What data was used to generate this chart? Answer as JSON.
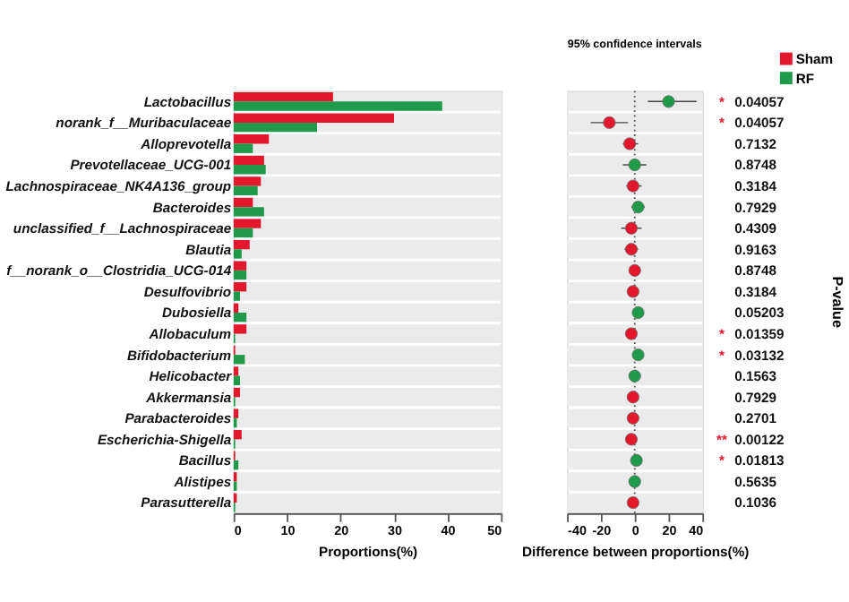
{
  "chart_data": [
    {
      "type": "bar",
      "orientation": "horizontal",
      "categories": [
        "Lactobacillus",
        "norank_f__Muribaculaceae",
        "Alloprevotella",
        "Prevotellaceae_UCG-001",
        "Lachnospiraceae_NK4A136_group",
        "Bacteroides",
        "unclassified_f__Lachnospiraceae",
        "Blautia",
        "f__norank_o__Clostridia_UCG-014",
        "Desulfovibrio",
        "Dubosiella",
        "Allobaculum",
        "Bifidobacterium",
        "Helicobacter",
        "Akkermansia",
        "Parabacteroides",
        "Escherichia-Shigella",
        "Bacillus",
        "Alistipes",
        "Parasutterella"
      ],
      "series": [
        {
          "name": "Sham",
          "color": "#e3182d",
          "values": [
            18.6,
            30,
            6.6,
            5.7,
            5.1,
            3.6,
            5.1,
            3,
            2.4,
            2.4,
            0.9,
            2.4,
            0.3,
            0.9,
            1.2,
            0.9,
            1.5,
            0.3,
            0.6,
            0.6
          ]
        },
        {
          "name": "RF",
          "color": "#1f9a4a",
          "values": [
            39,
            15.6,
            3.6,
            6,
            4.5,
            5.7,
            3.6,
            1.5,
            2.4,
            1.2,
            2.4,
            0.3,
            2.1,
            1.2,
            0.3,
            0.6,
            0.3,
            0.9,
            0.6,
            0.3
          ]
        }
      ],
      "xlim": [
        0,
        50
      ],
      "xticks": [
        0,
        10,
        20,
        30,
        40,
        50
      ],
      "xlabel": "Proportions(%)",
      "legend": "top right"
    },
    {
      "type": "scatter",
      "orientation": "horizontal",
      "title": "95% confidence intervals",
      "categories": [
        null,
        null,
        null,
        null,
        null,
        null,
        null,
        null,
        null,
        null,
        null,
        null,
        null,
        null,
        null,
        null,
        null,
        null,
        null,
        null
      ],
      "series": [
        {
          "colors": [
            "#1f9a4a",
            "#e3182d",
            "#e3182d",
            "#1f9a4a",
            "#e3182d",
            "#1f9a4a",
            "#e3182d",
            "#e3182d",
            "#e3182d",
            "#e3182d",
            "#1f9a4a",
            "#e3182d",
            "#1f9a4a",
            "#1f9a4a",
            "#e3182d",
            "#e3182d",
            "#e3182d",
            "#1f9a4a",
            "#1f9a4a",
            "#e3182d"
          ],
          "values": [
            20,
            -15,
            -3,
            0,
            -1,
            2,
            -2,
            -2,
            0,
            -1,
            2,
            -2,
            2,
            0,
            -1,
            -1,
            -2,
            1,
            0,
            -1
          ],
          "errors": [
            [
              7.7,
              36.5
            ],
            [
              -26,
              -4
            ],
            [
              -7,
              2
            ],
            [
              -7,
              7
            ],
            [
              -5,
              4
            ],
            [
              -2,
              6
            ],
            [
              -8,
              4
            ],
            [
              -6,
              2
            ],
            null,
            null,
            null,
            null,
            null,
            null,
            null,
            null,
            null,
            null,
            null,
            null
          ]
        }
      ],
      "marker": "circle",
      "xlim": [
        -40,
        40
      ],
      "xticks": [
        -40,
        -20,
        0,
        20,
        40
      ],
      "xlabel": "Difference between proportions(%)",
      "y2label": "P-value",
      "tick_labels": "x",
      "ref_lines": [
        {
          "axis": "x",
          "value": 0,
          "line_style": "dotted"
        }
      ],
      "annotations": [
        "* 0.04057",
        "* 0.04057",
        "0.7132",
        "0.8748",
        "0.3184",
        "0.7929",
        "0.4309",
        "0.9163",
        "0.8748",
        "0.3184",
        "0.05203",
        "* 0.01359",
        "* 0.03132",
        "0.1563",
        "0.7929",
        "0.2701",
        "** 0.00122",
        "* 0.01813",
        "0.5635",
        "0.1036"
      ]
    }
  ]
}
